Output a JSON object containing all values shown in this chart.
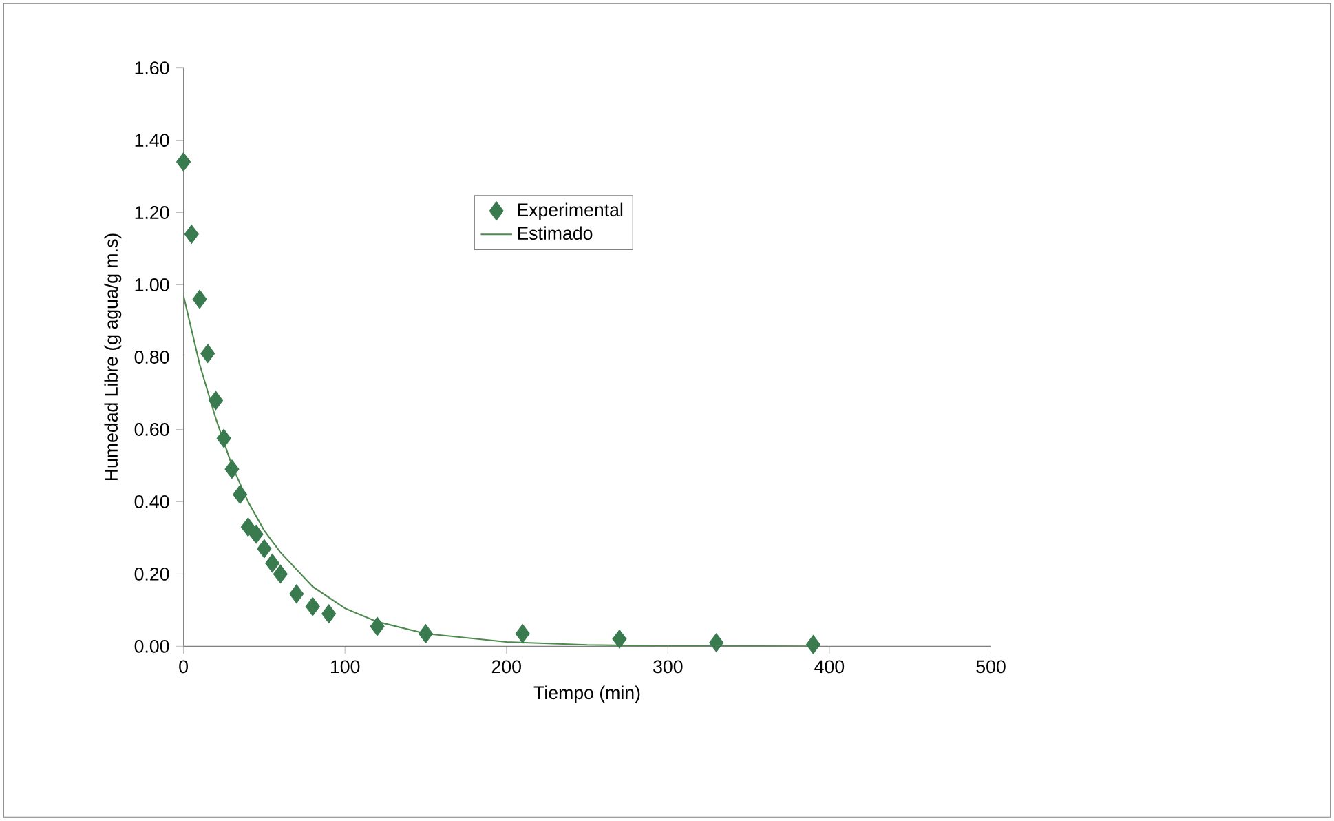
{
  "chart_data": {
    "type": "scatter",
    "xlabel": "Tiempo (min)",
    "ylabel": "Humedad Libre (g agua/g m.s)",
    "xlim": [
      0,
      500
    ],
    "ylim": [
      0,
      1.6
    ],
    "xticks": [
      0,
      100,
      200,
      300,
      400,
      500
    ],
    "yticks": [
      {
        "value": 0,
        "label": "0.00"
      },
      {
        "value": 0.2,
        "label": "0.20"
      },
      {
        "value": 0.4,
        "label": "0.40"
      },
      {
        "value": 0.6,
        "label": "0.60"
      },
      {
        "value": 0.8,
        "label": "0.80"
      },
      {
        "value": 1.0,
        "label": "1.00"
      },
      {
        "value": 1.2,
        "label": "1.20"
      },
      {
        "value": 1.4,
        "label": "1.40"
      },
      {
        "value": 1.6,
        "label": "1.60"
      }
    ],
    "grid": false,
    "legend": "top",
    "series": [
      {
        "name": "Experimental",
        "marker": "diamond",
        "color": "#3a7a4f",
        "x": [
          0,
          5,
          10,
          15,
          20,
          25,
          30,
          35,
          40,
          45,
          50,
          55,
          60,
          70,
          80,
          90,
          120,
          150,
          210,
          270,
          330,
          390
        ],
        "values": [
          1.34,
          1.14,
          0.96,
          0.81,
          0.68,
          0.575,
          0.49,
          0.42,
          0.33,
          0.31,
          0.27,
          0.23,
          0.2,
          0.145,
          0.11,
          0.09,
          0.055,
          0.035,
          0.035,
          0.02,
          0.01,
          0.005
        ]
      },
      {
        "name": "Estimado",
        "type": "line",
        "marker": "none",
        "line_style": "solid",
        "color": "#4e8a4e",
        "x": [
          0,
          10,
          20,
          30,
          40,
          50,
          60,
          80,
          100,
          120,
          150,
          200,
          250,
          300,
          390
        ],
        "values": [
          0.97,
          0.78,
          0.63,
          0.5,
          0.4,
          0.32,
          0.26,
          0.165,
          0.105,
          0.068,
          0.035,
          0.012,
          0.004,
          0.001,
          0.0
        ]
      }
    ]
  }
}
